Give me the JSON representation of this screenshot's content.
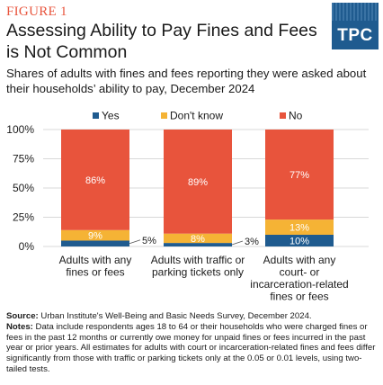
{
  "header": {
    "figure_label": "FIGURE 1",
    "title": "Assessing Ability to Pay Fines and Fees is Not Common",
    "subtitle": "Shares of adults with fines and fees reporting they were asked about their households’ ability to pay, December 2024",
    "logo_text": "TPC"
  },
  "footer": {
    "source_label": "Source:",
    "source_text": "Urban Institute's Well-Being and Basic Needs Survey, December 2024.",
    "notes_label": "Notes:",
    "notes_text": "Data include respondents ages 18 to 64 or their households who were charged fines or fees in the past 12 months or currently owe money for unpaid fines or fees incurred in the past year or prior years. All estimates for adults with court or incarceration-related fines and fees differ significantly from those with traffic or parking tickets only at the 0.05 or 0.01 levels, using two-tailed tests."
  },
  "colors": {
    "yes": "#1f5b8f",
    "dont_know": "#f5b335",
    "no": "#e8543c",
    "grid": "#d8d8d8",
    "text": "#1a1a1a"
  },
  "chart_data": {
    "type": "bar",
    "stacked": true,
    "categories": [
      [
        "Adults with any",
        "fines or fees"
      ],
      [
        "Adults with traffic or",
        "parking tickets only"
      ],
      [
        "Adults with any",
        "court- or",
        "incarceration-related",
        "fines or fees"
      ]
    ],
    "series": [
      {
        "name": "Yes",
        "color_key": "yes",
        "values": [
          5,
          3,
          10
        ],
        "labels": [
          "5%",
          "3%",
          "10%"
        ],
        "label_position": [
          "outside",
          "outside",
          "inside"
        ]
      },
      {
        "name": "Don't know",
        "color_key": "dont_know",
        "values": [
          9,
          8,
          13
        ],
        "labels": [
          "9%",
          "8%",
          "13%"
        ],
        "label_position": [
          "inside",
          "inside",
          "inside"
        ]
      },
      {
        "name": "No",
        "color_key": "no",
        "values": [
          86,
          89,
          77
        ],
        "labels": [
          "86%",
          "89%",
          "77%"
        ],
        "label_position": [
          "inside",
          "inside",
          "inside"
        ]
      }
    ],
    "ylim": [
      0,
      100
    ],
    "yticks": [
      0,
      25,
      50,
      75,
      100
    ],
    "ytick_labels": [
      "0%",
      "25%",
      "50%",
      "75%",
      "100%"
    ],
    "legend": "top",
    "grid": true
  }
}
